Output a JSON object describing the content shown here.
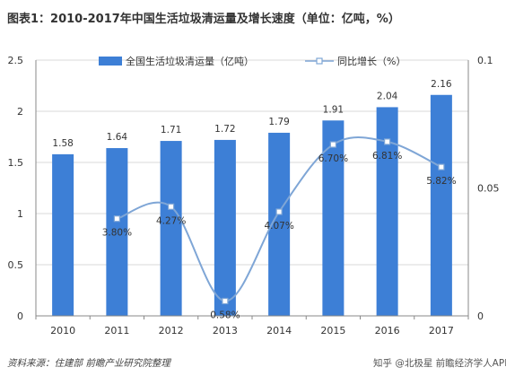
{
  "title": "图表1：2010-2017年中国生活垃圾清运量及增长速度（单位：亿吨，%）",
  "source": "资料来源：住建部 前瞻产业研究院整理",
  "watermark": "知乎 @北极星 前瞻经济学人APP",
  "colors": {
    "bar": "#3d7fd6",
    "line": "#7fa6d6",
    "marker_fill": "#ffffff",
    "marker_edge": "#7fa6d6",
    "grid": "#d9d9d9",
    "axis": "#888888"
  },
  "chart_data": {
    "type": "bar",
    "categories": [
      "2010",
      "2011",
      "2012",
      "2013",
      "2014",
      "2015",
      "2016",
      "2017"
    ],
    "series": [
      {
        "name": "全国生活垃圾清运量（亿吨）",
        "type": "bar",
        "axis": "left",
        "values": [
          1.58,
          1.64,
          1.71,
          1.72,
          1.79,
          1.91,
          2.04,
          2.16
        ],
        "labels": [
          "1.58",
          "1.64",
          "1.71",
          "1.72",
          "1.79",
          "1.91",
          "2.04",
          "2.16"
        ]
      },
      {
        "name": "同比增长（%）",
        "type": "line",
        "axis": "right",
        "values": [
          null,
          0.038,
          0.0427,
          0.0058,
          0.0407,
          0.067,
          0.0681,
          0.0582
        ],
        "labels": [
          "",
          "3.80%",
          "4.27%",
          "0.58%",
          "4.07%",
          "6.70%",
          "6.81%",
          "5.82%"
        ]
      }
    ],
    "yleft": {
      "range": [
        0,
        2.5
      ],
      "ticks": [
        "0",
        "0.5",
        "1",
        "1.5",
        "2",
        "2.5"
      ],
      "tick_values": [
        0,
        0.5,
        1,
        1.5,
        2,
        2.5
      ]
    },
    "yright": {
      "range": [
        0,
        0.1
      ],
      "ticks": [
        "0",
        "0.05",
        "0.1"
      ],
      "tick_values": [
        0,
        0.05,
        0.1
      ]
    },
    "grid": true,
    "legend": "top-center"
  }
}
